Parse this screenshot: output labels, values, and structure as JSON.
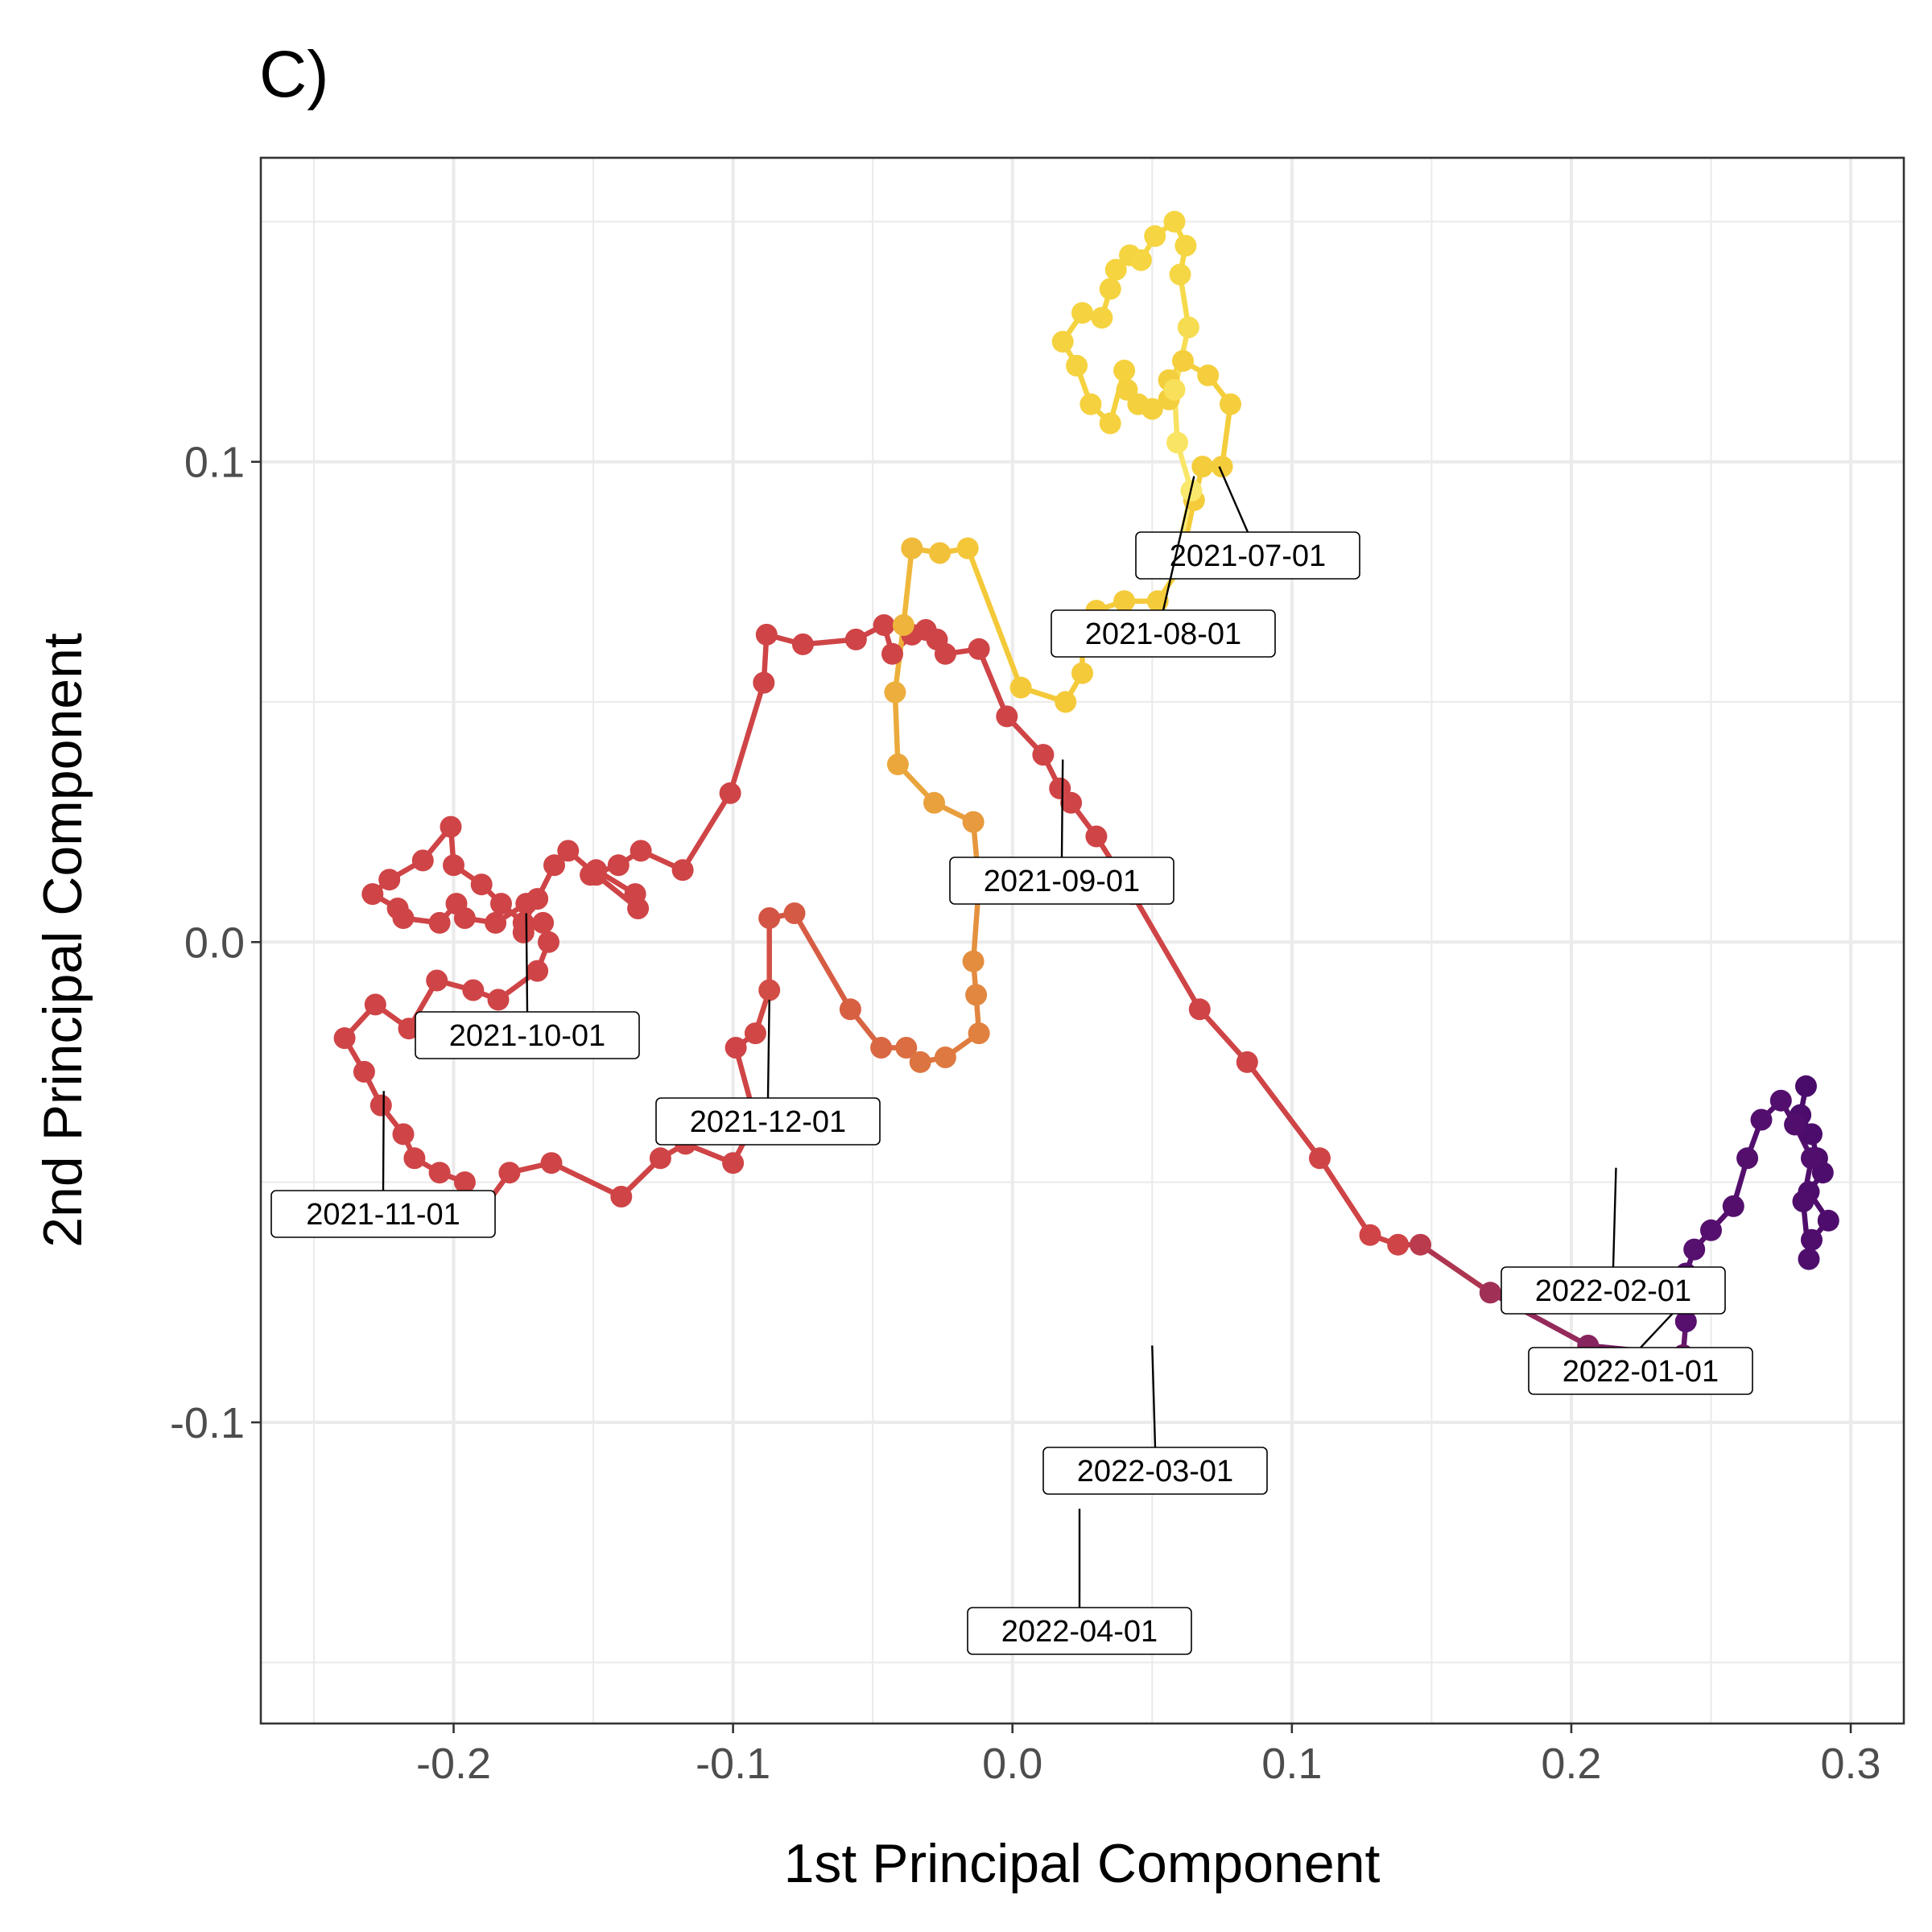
{
  "plot_tag": "C)",
  "chart_data": {
    "type": "line",
    "title": "C)",
    "xlabel": "1st Principal Component",
    "ylabel": "2nd Principal Component",
    "xlim": [
      -0.269,
      0.319
    ],
    "ylim": [
      -0.1627,
      0.1633
    ],
    "x_ticks": [
      -0.2,
      -0.1,
      0.0,
      0.1,
      0.2,
      0.3
    ],
    "x_tick_labels": [
      "-0.2",
      "-0.1",
      "0.0",
      "0.1",
      "0.2",
      "0.3"
    ],
    "y_ticks": [
      -0.1,
      0.0,
      0.1
    ],
    "y_tick_labels": [
      "-0.1",
      "0.0",
      "0.1"
    ],
    "x_minor_ticks": [
      -0.25,
      -0.15,
      -0.05,
      0.05,
      0.15,
      0.25
    ],
    "y_minor_ticks": [
      -0.15,
      -0.05,
      0.05,
      0.15
    ],
    "grid": true,
    "legend": "none",
    "color_scale": [
      "#fcffa4",
      "#f7d13d",
      "#fb9b06",
      "#ed6925",
      "#cf4446",
      "#a52c60",
      "#781c6d",
      "#4a0c6b",
      "#1b0c41"
    ],
    "series": [
      {
        "points": [
          [
            0.284,
            -0.03
          ],
          [
            0.282,
            -0.036
          ],
          [
            0.286,
            -0.04
          ],
          [
            0.288,
            -0.045
          ],
          [
            0.29,
            -0.048
          ],
          [
            0.285,
            -0.052
          ],
          [
            0.292,
            -0.058
          ],
          [
            0.286,
            -0.062
          ],
          [
            0.285,
            -0.066
          ],
          [
            0.283,
            -0.054
          ],
          [
            0.286,
            -0.045
          ],
          [
            0.28,
            -0.038
          ],
          [
            0.275,
            -0.033
          ],
          [
            0.268,
            -0.037
          ],
          [
            0.263,
            -0.045
          ],
          [
            0.258,
            -0.055
          ],
          [
            0.25,
            -0.06
          ],
          [
            0.244,
            -0.064
          ],
          [
            0.241,
            -0.069
          ],
          [
            0.241,
            -0.079
          ],
          [
            0.24,
            -0.086
          ],
          [
            0.206,
            -0.084
          ],
          [
            0.171,
            -0.073
          ],
          [
            0.146,
            -0.063
          ],
          [
            0.138,
            -0.063
          ],
          [
            0.128,
            -0.061
          ],
          [
            0.11,
            -0.045
          ],
          [
            0.084,
            -0.025
          ],
          [
            0.067,
            -0.014
          ],
          [
            0.043,
            0.01
          ],
          [
            0.03,
            0.022
          ],
          [
            0.021,
            0.029
          ],
          [
            0.017,
            0.032
          ],
          [
            0.011,
            0.039
          ],
          [
            -0.002,
            0.047
          ],
          [
            -0.012,
            0.061
          ],
          [
            -0.024,
            0.06
          ],
          [
            -0.027,
            0.063
          ],
          [
            -0.031,
            0.065
          ],
          [
            -0.036,
            0.064
          ],
          [
            -0.043,
            0.06
          ],
          [
            -0.046,
            0.066
          ],
          [
            -0.056,
            0.063
          ],
          [
            -0.075,
            0.062
          ],
          [
            -0.088,
            0.064
          ],
          [
            -0.089,
            0.054
          ],
          [
            -0.101,
            0.031
          ],
          [
            -0.118,
            0.015
          ],
          [
            -0.133,
            0.019
          ],
          [
            -0.141,
            0.016
          ],
          [
            -0.151,
            0.014
          ],
          [
            -0.149,
            0.015
          ],
          [
            -0.135,
            0.01
          ],
          [
            -0.134,
            0.007
          ],
          [
            -0.149,
            0.014
          ],
          [
            -0.159,
            0.019
          ],
          [
            -0.164,
            0.016
          ],
          [
            -0.17,
            0.009
          ],
          [
            -0.175,
            0.004
          ],
          [
            -0.183,
            0.008
          ],
          [
            -0.19,
            0.012
          ],
          [
            -0.2,
            0.016
          ],
          [
            -0.201,
            0.024
          ],
          [
            -0.211,
            0.017
          ],
          [
            -0.223,
            0.013
          ],
          [
            -0.229,
            0.01
          ],
          [
            -0.22,
            0.007
          ],
          [
            -0.218,
            0.005
          ],
          [
            -0.205,
            0.004
          ],
          [
            -0.199,
            0.008
          ],
          [
            -0.196,
            0.005
          ],
          [
            -0.185,
            0.004
          ],
          [
            -0.174,
            0.008
          ],
          [
            -0.175,
            0.002
          ],
          [
            -0.168,
            0.004
          ],
          [
            -0.166,
            0.0
          ],
          [
            -0.17,
            -0.006
          ],
          [
            -0.184,
            -0.012
          ],
          [
            -0.193,
            -0.01
          ],
          [
            -0.206,
            -0.008
          ],
          [
            -0.216,
            -0.018
          ],
          [
            -0.228,
            -0.013
          ],
          [
            -0.239,
            -0.02
          ],
          [
            -0.232,
            -0.027
          ],
          [
            -0.226,
            -0.034
          ],
          [
            -0.218,
            -0.04
          ],
          [
            -0.214,
            -0.045
          ],
          [
            -0.205,
            -0.048
          ],
          [
            -0.196,
            -0.05
          ],
          [
            -0.189,
            -0.059
          ],
          [
            -0.19,
            -0.056
          ],
          [
            -0.18,
            -0.048
          ],
          [
            -0.165,
            -0.046
          ],
          [
            -0.14,
            -0.053
          ],
          [
            -0.126,
            -0.045
          ],
          [
            -0.117,
            -0.042
          ],
          [
            -0.1,
            -0.046
          ],
          [
            -0.092,
            -0.037
          ],
          [
            -0.099,
            -0.022
          ],
          [
            -0.092,
            -0.019
          ],
          [
            -0.087,
            -0.01
          ],
          [
            -0.087,
            0.005
          ],
          [
            -0.078,
            0.006
          ],
          [
            -0.058,
            -0.014
          ],
          [
            -0.047,
            -0.022
          ],
          [
            -0.038,
            -0.022
          ],
          [
            -0.033,
            -0.025
          ],
          [
            -0.024,
            -0.024
          ],
          [
            -0.012,
            -0.019
          ],
          [
            -0.013,
            -0.011
          ],
          [
            -0.014,
            -0.004
          ],
          [
            -0.012,
            0.012
          ],
          [
            -0.014,
            0.025
          ],
          [
            -0.028,
            0.029
          ],
          [
            -0.041,
            0.037
          ],
          [
            -0.042,
            0.052
          ],
          [
            -0.039,
            0.066
          ],
          [
            -0.036,
            0.082
          ],
          [
            -0.026,
            0.081
          ],
          [
            -0.016,
            0.082
          ],
          [
            0.003,
            0.053
          ],
          [
            0.019,
            0.05
          ],
          [
            0.025,
            0.056
          ],
          [
            0.025,
            0.063
          ],
          [
            0.03,
            0.069
          ],
          [
            0.04,
            0.071
          ],
          [
            0.052,
            0.071
          ],
          [
            0.06,
            0.078
          ],
          [
            0.065,
            0.092
          ],
          [
            0.068,
            0.099
          ],
          [
            0.075,
            0.099
          ],
          [
            0.078,
            0.112
          ],
          [
            0.07,
            0.118
          ],
          [
            0.061,
            0.121
          ],
          [
            0.056,
            0.117
          ],
          [
            0.056,
            0.113
          ],
          [
            0.05,
            0.111
          ],
          [
            0.045,
            0.112
          ],
          [
            0.041,
            0.115
          ],
          [
            0.04,
            0.119
          ],
          [
            0.035,
            0.108
          ],
          [
            0.028,
            0.112
          ],
          [
            0.023,
            0.12
          ],
          [
            0.018,
            0.125
          ],
          [
            0.025,
            0.131
          ],
          [
            0.032,
            0.13
          ],
          [
            0.035,
            0.136
          ],
          [
            0.037,
            0.14
          ],
          [
            0.042,
            0.143
          ],
          [
            0.046,
            0.142
          ],
          [
            0.051,
            0.147
          ],
          [
            0.058,
            0.15
          ],
          [
            0.062,
            0.145
          ],
          [
            0.06,
            0.139
          ],
          [
            0.063,
            0.128
          ],
          [
            0.058,
            0.115
          ],
          [
            0.059,
            0.104
          ],
          [
            0.064,
            0.094
          ],
          [
            0.06,
            0.083
          ],
          [
            0.053,
            0.078
          ]
        ]
      }
    ],
    "annotations": [
      {
        "label": "2021-07-01",
        "x": 0.074,
        "y": 0.099
      },
      {
        "label": "2021-08-01",
        "x": 0.065,
        "y": 0.097
      },
      {
        "label": "2021-09-01",
        "x": 0.018,
        "y": 0.038
      },
      {
        "label": "2021-10-01",
        "x": -0.174,
        "y": 0.006
      },
      {
        "label": "2021-11-01",
        "x": -0.225,
        "y": -0.031
      },
      {
        "label": "2021-12-01",
        "x": -0.087,
        "y": -0.012
      },
      {
        "label": "2022-01-01",
        "x": 0.24,
        "y": -0.075
      },
      {
        "label": "2022-02-01",
        "x": 0.216,
        "y": -0.047
      },
      {
        "label": "2022-03-01",
        "x": 0.05,
        "y": -0.084
      },
      {
        "label": "2022-04-01",
        "x": 0.024,
        "y": -0.118
      }
    ]
  }
}
